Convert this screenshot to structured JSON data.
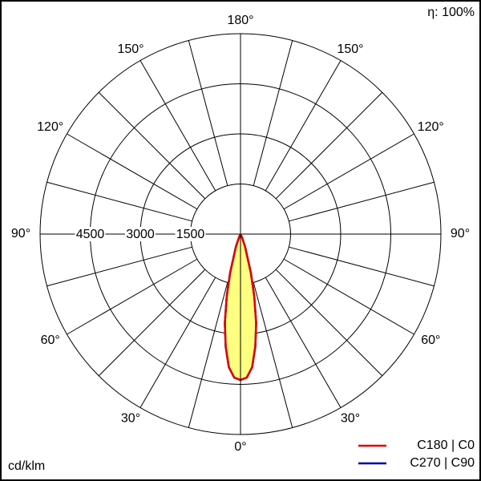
{
  "chart_data": {
    "type": "polar",
    "efficiency_label": "η: 100%",
    "unit_label": "cd/klm",
    "x": [
      0,
      2.5,
      5,
      7.5,
      10,
      12.5,
      15,
      20,
      25,
      30
    ],
    "series": [
      {
        "name": "C270 | C90",
        "color": "#0000a0",
        "values": [
          4370,
          4300,
          4000,
          3400,
          2700,
          1900,
          1200,
          400,
          100,
          0
        ]
      },
      {
        "name": "C180 | C0",
        "color": "#e00000",
        "values": [
          4370,
          4300,
          4000,
          3400,
          2700,
          1900,
          1200,
          400,
          100,
          0
        ]
      }
    ],
    "fill_color": "#ffff80",
    "rlim": [
      0,
      6000
    ],
    "rticks": [
      1500,
      3000,
      4500
    ],
    "thetagrid": [
      0,
      15,
      30,
      45,
      60,
      75,
      90,
      105,
      120,
      135,
      150,
      165,
      180
    ],
    "thetaticks": [
      {
        "value": 0,
        "label": "0°"
      },
      {
        "value": 30,
        "label": "30°"
      },
      {
        "value": 60,
        "label": "60°"
      },
      {
        "value": 90,
        "label": "90°"
      },
      {
        "value": 120,
        "label": "120°"
      },
      {
        "value": 150,
        "label": "150°"
      },
      {
        "value": 180,
        "label": "180°"
      }
    ]
  }
}
